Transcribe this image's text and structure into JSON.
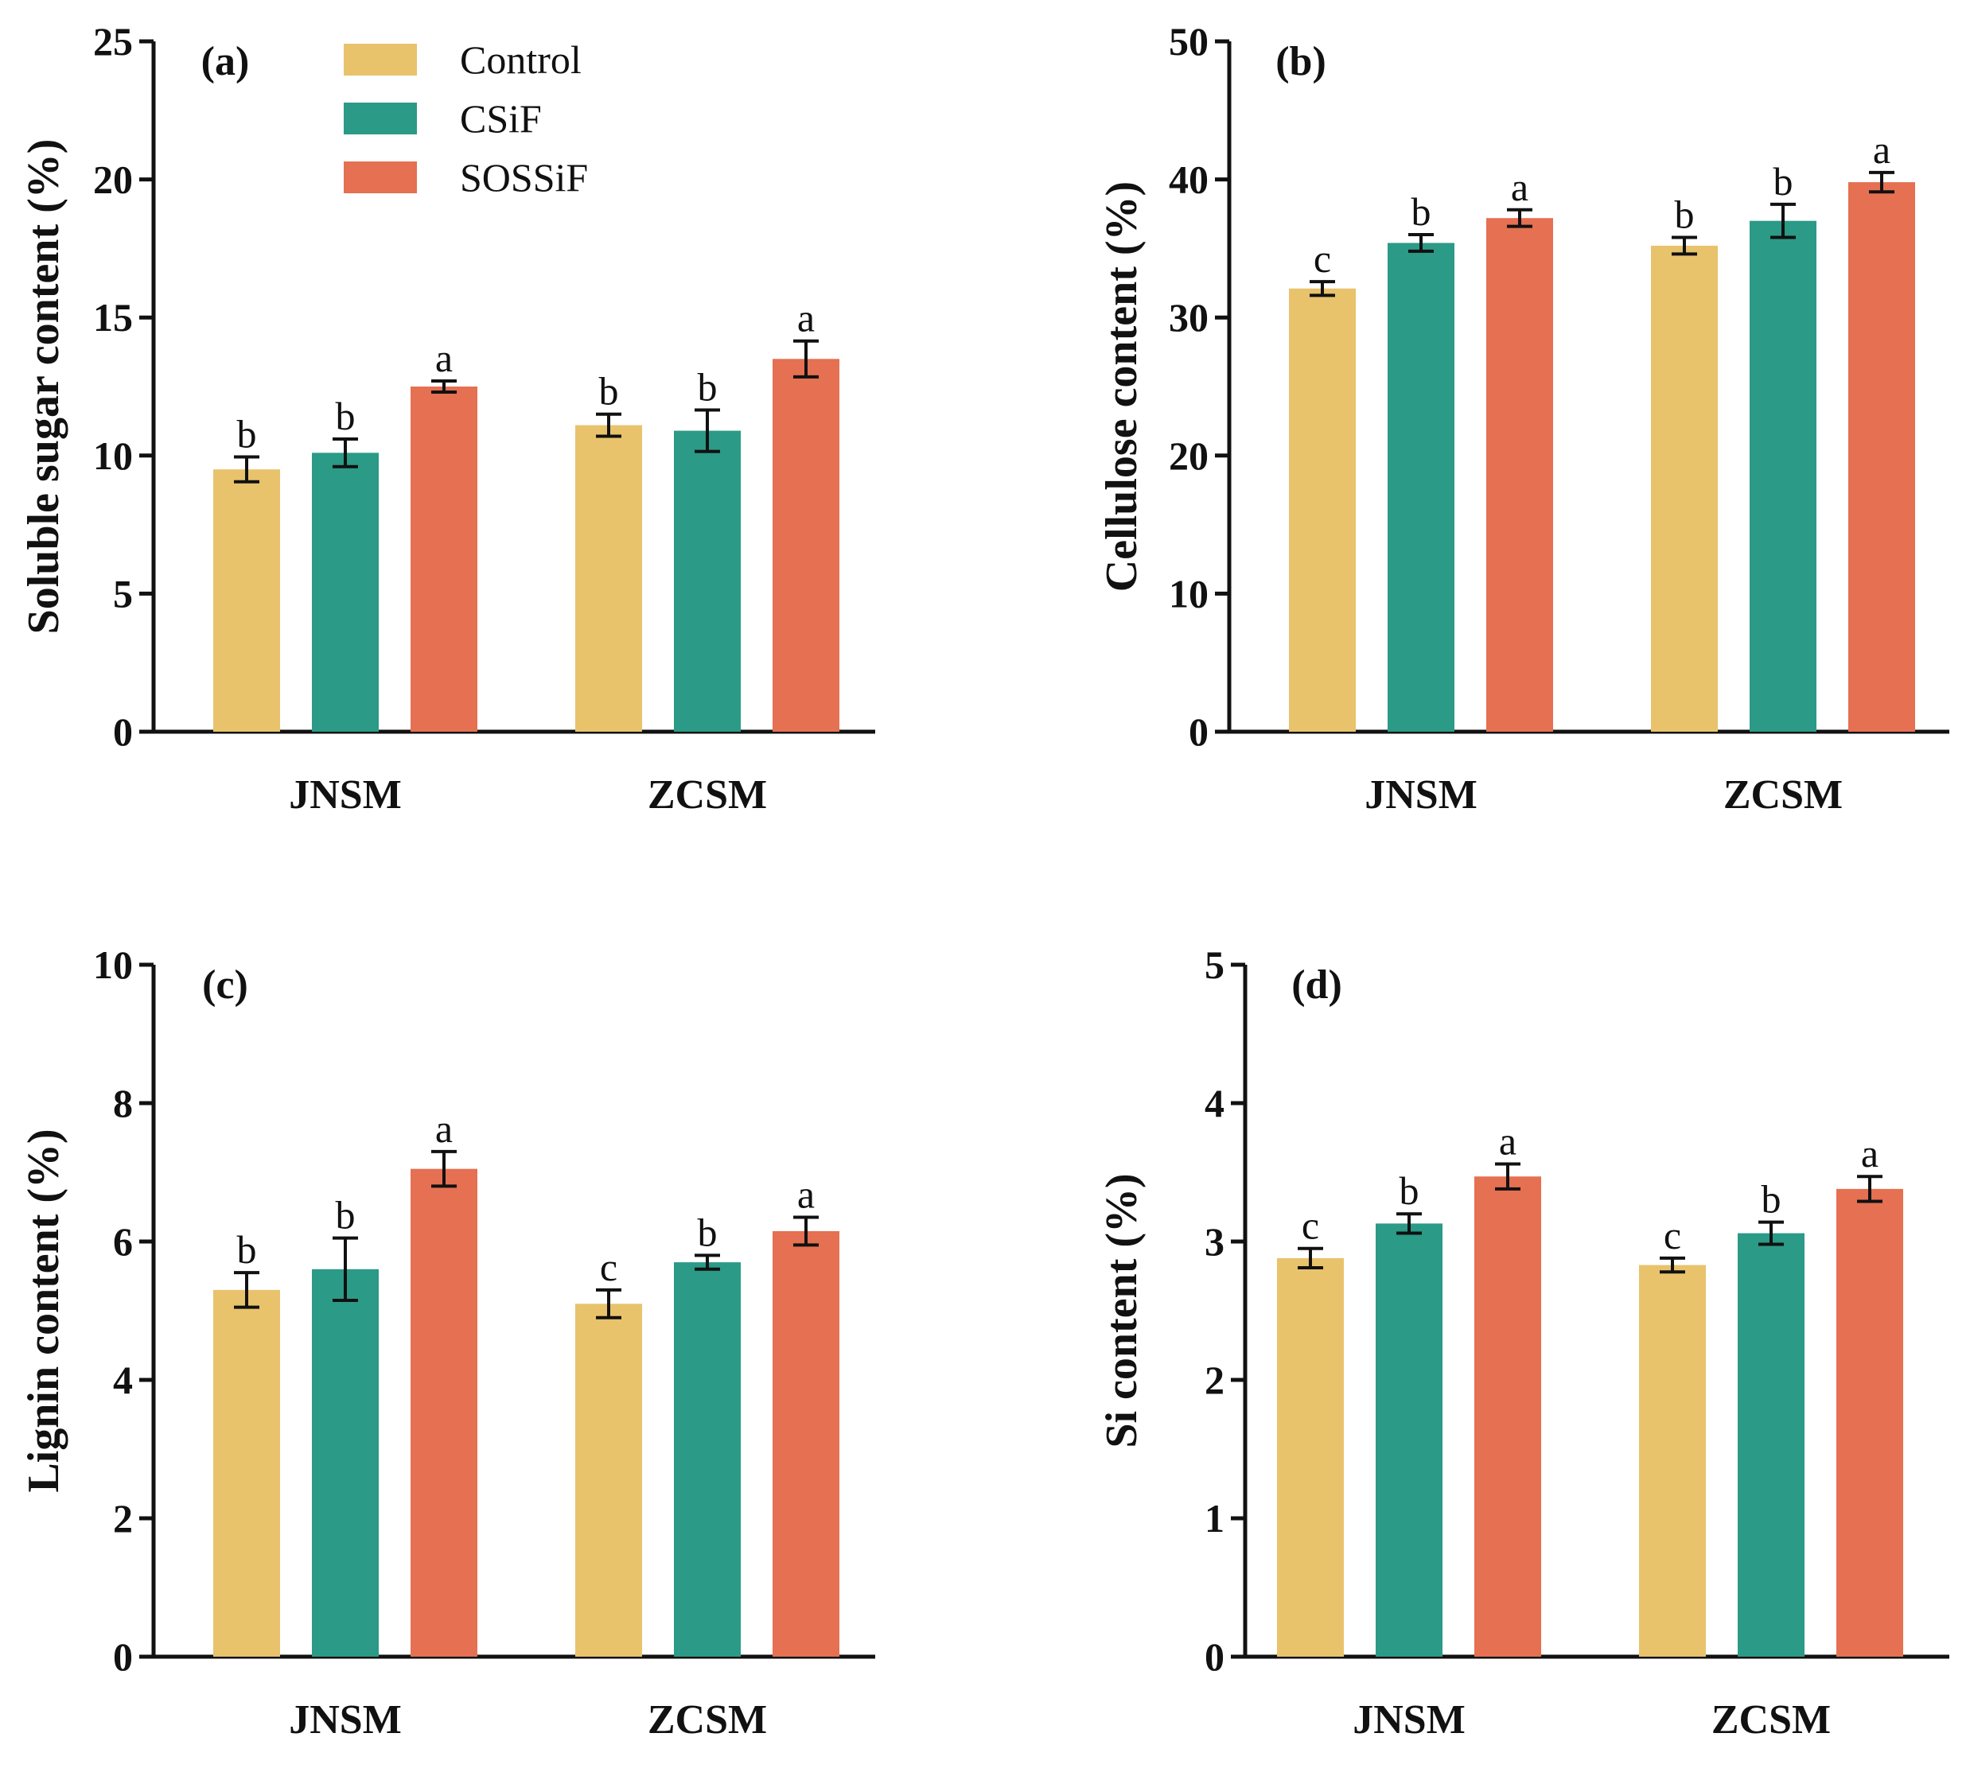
{
  "colors": {
    "Control": "#e8c36c",
    "CSiF": "#2b9a87",
    "SOSSiF": "#e57052"
  },
  "legend": [
    "Control",
    "CSiF",
    "SOSSiF"
  ],
  "chart_data": [
    {
      "type": "bar",
      "panel_label": "(a)",
      "ylabel": "Soluble sugar content (%)",
      "ylim": [
        0,
        25
      ],
      "yticks": [
        0,
        5,
        10,
        15,
        20,
        25
      ],
      "categories": [
        "JNSM",
        "ZCSM"
      ],
      "series": [
        {
          "name": "Control",
          "values": [
            9.5,
            11.1
          ],
          "errors": [
            0.45,
            0.4
          ],
          "letters": [
            "b",
            "b"
          ]
        },
        {
          "name": "CSiF",
          "values": [
            10.1,
            10.9
          ],
          "errors": [
            0.5,
            0.75
          ],
          "letters": [
            "b",
            "b"
          ]
        },
        {
          "name": "SOSSiF",
          "values": [
            12.5,
            13.5
          ],
          "errors": [
            0.2,
            0.65
          ],
          "letters": [
            "a",
            "a"
          ]
        }
      ],
      "show_legend": true
    },
    {
      "type": "bar",
      "panel_label": "(b)",
      "ylabel": "Cellulose content (%)",
      "ylim": [
        0,
        50
      ],
      "yticks": [
        0,
        10,
        20,
        30,
        40,
        50
      ],
      "categories": [
        "JNSM",
        "ZCSM"
      ],
      "series": [
        {
          "name": "Control",
          "values": [
            32.1,
            35.2
          ],
          "errors": [
            0.5,
            0.6
          ],
          "letters": [
            "c",
            "b"
          ]
        },
        {
          "name": "CSiF",
          "values": [
            35.4,
            37.0
          ],
          "errors": [
            0.6,
            1.2
          ],
          "letters": [
            "b",
            "b"
          ]
        },
        {
          "name": "SOSSiF",
          "values": [
            37.2,
            39.8
          ],
          "errors": [
            0.6,
            0.7
          ],
          "letters": [
            "a",
            "a"
          ]
        }
      ],
      "show_legend": false
    },
    {
      "type": "bar",
      "panel_label": "(c)",
      "ylabel": "Lignin content (%)",
      "ylim": [
        0,
        10
      ],
      "yticks": [
        0,
        2,
        4,
        6,
        8,
        10
      ],
      "categories": [
        "JNSM",
        "ZCSM"
      ],
      "series": [
        {
          "name": "Control",
          "values": [
            5.3,
            5.1
          ],
          "errors": [
            0.25,
            0.2
          ],
          "letters": [
            "b",
            "c"
          ]
        },
        {
          "name": "CSiF",
          "values": [
            5.6,
            5.7
          ],
          "errors": [
            0.45,
            0.1
          ],
          "letters": [
            "b",
            "b"
          ]
        },
        {
          "name": "SOSSiF",
          "values": [
            7.05,
            6.15
          ],
          "errors": [
            0.25,
            0.2
          ],
          "letters": [
            "a",
            "a"
          ]
        }
      ],
      "show_legend": false
    },
    {
      "type": "bar",
      "panel_label": "(d)",
      "ylabel": "Si content (%)",
      "ylim": [
        0,
        5
      ],
      "yticks": [
        0,
        1,
        2,
        3,
        4,
        5
      ],
      "categories": [
        "JNSM",
        "ZCSM"
      ],
      "series": [
        {
          "name": "Control",
          "values": [
            2.88,
            2.83
          ],
          "errors": [
            0.07,
            0.05
          ],
          "letters": [
            "c",
            "c"
          ]
        },
        {
          "name": "CSiF",
          "values": [
            3.13,
            3.06
          ],
          "errors": [
            0.07,
            0.08
          ],
          "letters": [
            "b",
            "b"
          ]
        },
        {
          "name": "SOSSiF",
          "values": [
            3.47,
            3.38
          ],
          "errors": [
            0.09,
            0.09
          ],
          "letters": [
            "a",
            "a"
          ]
        }
      ],
      "show_legend": false
    }
  ]
}
